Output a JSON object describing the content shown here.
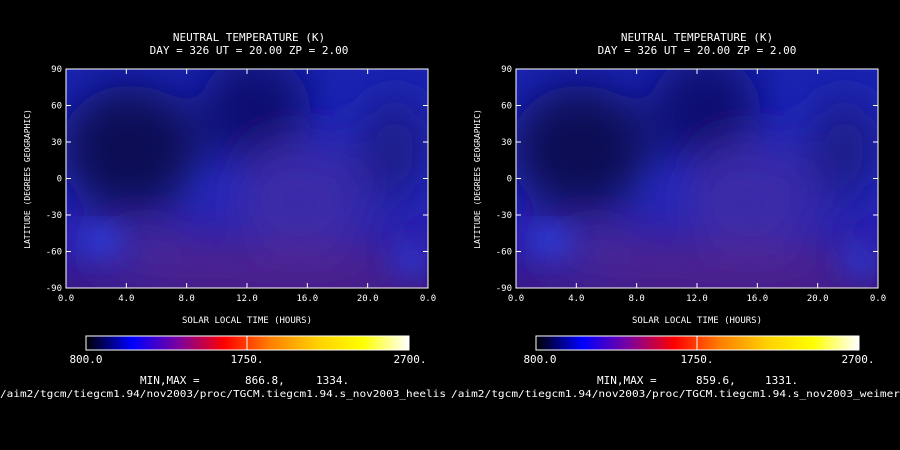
{
  "colors": {
    "background": "#000000",
    "text": "#ffffff",
    "colorbar_stops": [
      "#000000",
      "#0000ff",
      "#7a00a0",
      "#ff0000",
      "#ff8000",
      "#ffd000",
      "#ffff00",
      "#ffffff"
    ]
  },
  "chart_data": [
    {
      "type": "heatmap",
      "title": "NEUTRAL TEMPERATURE (K)",
      "subtitle": "DAY = 326  UT = 20.00  ZP =    2.00",
      "xlabel": "SOLAR LOCAL TIME (HOURS)",
      "ylabel": "LATITUDE (DEGREES GEOGRAPHIC)",
      "xticks": [
        "0.0",
        "4.0",
        "8.0",
        "12.0",
        "16.0",
        "20.0",
        "0.0"
      ],
      "yticks": [
        "90",
        "60",
        "30",
        "0",
        "-30",
        "-60",
        "-90"
      ],
      "xlim": [
        0,
        24
      ],
      "ylim": [
        -90,
        90
      ],
      "colorbar": {
        "min": "800.0",
        "mid": "1750.",
        "max": "2700."
      },
      "minmax_label": "MIN,MAX =",
      "min": "866.8,",
      "max": "1334.",
      "footer_path": "/aim2/tgcm/tiegcm1.94/nov2003/proc/TGCM.tiegcm1.94.s_nov2003_heelis"
    },
    {
      "type": "heatmap",
      "title": "NEUTRAL TEMPERATURE (K)",
      "subtitle": "DAY = 326  UT = 20.00  ZP =    2.00",
      "xlabel": "SOLAR LOCAL TIME (HOURS)",
      "ylabel": "LATITUDE (DEGREES GEOGRAPHIC)",
      "xticks": [
        "0.0",
        "4.0",
        "8.0",
        "12.0",
        "16.0",
        "20.0",
        "0.0"
      ],
      "yticks": [
        "90",
        "60",
        "30",
        "0",
        "-30",
        "-60",
        "-90"
      ],
      "xlim": [
        0,
        24
      ],
      "ylim": [
        -90,
        90
      ],
      "colorbar": {
        "min": "800.0",
        "mid": "1750.",
        "max": "2700."
      },
      "minmax_label": "MIN,MAX =",
      "min": "859.6,",
      "max": "1331.",
      "footer_path": "/aim2/tgcm/tiegcm1.94/nov2003/proc/TGCM.tiegcm1.94.s_nov2003_weimer"
    }
  ]
}
